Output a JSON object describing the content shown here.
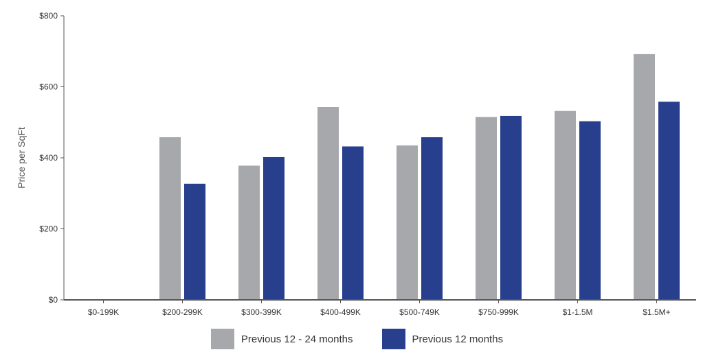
{
  "chart_data": {
    "type": "bar",
    "title": "",
    "xlabel": "",
    "ylabel": "Price per SqFt",
    "ylim": [
      0,
      800
    ],
    "yticks": [
      0,
      200,
      400,
      600,
      800
    ],
    "ytick_labels": [
      "$0",
      "$200",
      "$400",
      "$600",
      "$800"
    ],
    "grid": false,
    "legend_position": "bottom-center",
    "categories": [
      "$0-199K",
      "$200-299K",
      "$300-399K",
      "$400-499K",
      "$500-749K",
      "$750-999K",
      "$1-1.5M",
      "$1.5M+"
    ],
    "series": [
      {
        "name": "Previous 12 - 24 months",
        "color": "#a7a8ab",
        "values": [
          0,
          458,
          378,
          543,
          435,
          515,
          532,
          692
        ]
      },
      {
        "name": "Previous 12 months",
        "color": "#283f8e",
        "values": [
          0,
          327,
          402,
          432,
          458,
          518,
          503,
          558
        ]
      }
    ]
  }
}
